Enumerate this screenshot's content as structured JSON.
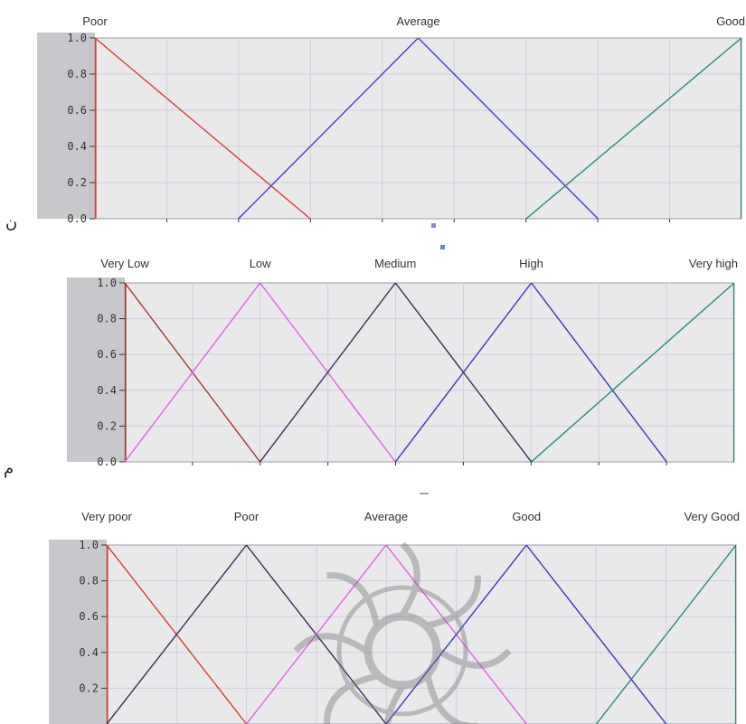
{
  "figure": {
    "side_glyphs": [
      "ن",
      "م"
    ],
    "watermark_icon": "rosette-watermark-icon"
  },
  "chart_data": [
    {
      "type": "line",
      "title": "",
      "xlim": [
        0,
        1
      ],
      "ylim": [
        0,
        1
      ],
      "yticks": [
        "0.0",
        "0.2",
        "0.4",
        "0.6",
        "0.8",
        "1.0"
      ],
      "grid": true,
      "series": [
        {
          "name": "Poor",
          "color": "#d9412f",
          "points": [
            [
              0,
              1
            ],
            [
              0,
              1
            ],
            [
              0.333,
              0
            ]
          ]
        },
        {
          "name": "Average",
          "color": "#3f3fd0",
          "points": [
            [
              0.222,
              0
            ],
            [
              0.5,
              1
            ],
            [
              0.778,
              0
            ]
          ]
        },
        {
          "name": "Good",
          "color": "#2f8a73",
          "points": [
            [
              0.667,
              0
            ],
            [
              1,
              1
            ],
            [
              1,
              1
            ]
          ]
        }
      ]
    },
    {
      "type": "line",
      "title": "",
      "xlim": [
        0,
        1
      ],
      "ylim": [
        0,
        1
      ],
      "yticks": [
        "0.0",
        "0.2",
        "0.4",
        "0.6",
        "0.8",
        "1.0"
      ],
      "grid": true,
      "series": [
        {
          "name": "Very Low",
          "color": "#a83a2a",
          "points": [
            [
              0,
              1
            ],
            [
              0,
              1
            ],
            [
              0.222,
              0
            ]
          ]
        },
        {
          "name": "Low",
          "color": "#e060e0",
          "points": [
            [
              0,
              0
            ],
            [
              0.222,
              1
            ],
            [
              0.444,
              0
            ]
          ]
        },
        {
          "name": "Medium",
          "color": "#333355",
          "points": [
            [
              0.222,
              0
            ],
            [
              0.444,
              1
            ],
            [
              0.667,
              0
            ]
          ]
        },
        {
          "name": "High",
          "color": "#3a3ab8",
          "points": [
            [
              0.444,
              0
            ],
            [
              0.667,
              1
            ],
            [
              0.889,
              0
            ]
          ]
        },
        {
          "name": "Very high",
          "color": "#2f8a73",
          "points": [
            [
              0.667,
              0
            ],
            [
              1,
              1
            ],
            [
              1,
              1
            ]
          ]
        }
      ]
    },
    {
      "type": "line",
      "title": "",
      "xlim": [
        0,
        1
      ],
      "ylim": [
        0,
        1
      ],
      "yticks": [
        "0.2",
        "0.4",
        "0.6",
        "0.8",
        "1.0"
      ],
      "grid": true,
      "series": [
        {
          "name": "Very poor",
          "color": "#d9412f",
          "points": [
            [
              0,
              1
            ],
            [
              0,
              1
            ],
            [
              0.222,
              0
            ]
          ]
        },
        {
          "name": "Poor",
          "color": "#333355",
          "points": [
            [
              0,
              0
            ],
            [
              0.222,
              1
            ],
            [
              0.444,
              0
            ]
          ]
        },
        {
          "name": "Average",
          "color": "#e060e0",
          "points": [
            [
              0.222,
              0
            ],
            [
              0.444,
              1
            ],
            [
              0.667,
              0
            ]
          ]
        },
        {
          "name": "Good",
          "color": "#3a3ab8",
          "points": [
            [
              0.444,
              0
            ],
            [
              0.667,
              1
            ],
            [
              0.889,
              0
            ]
          ]
        },
        {
          "name": "Very Good",
          "color": "#2f8a73",
          "points": [
            [
              0.778,
              0
            ],
            [
              1,
              1
            ],
            [
              1,
              1
            ]
          ]
        }
      ]
    }
  ]
}
